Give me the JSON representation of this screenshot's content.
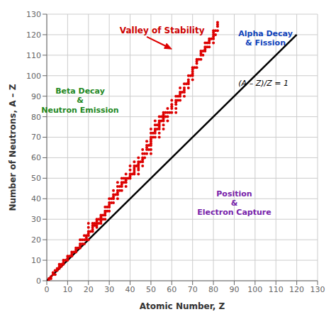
{
  "chart_data": {
    "type": "scatter",
    "xlabel": "Atomic Number, Z",
    "ylabel": "Number of Neutrons, A – Z",
    "xlim": [
      0,
      130
    ],
    "ylim": [
      0,
      130
    ],
    "xticks": [
      0,
      10,
      20,
      30,
      40,
      50,
      60,
      70,
      80,
      90,
      100,
      110,
      120,
      130
    ],
    "yticks": [
      0,
      10,
      20,
      30,
      40,
      50,
      60,
      70,
      80,
      90,
      100,
      110,
      120,
      130
    ],
    "grid": true,
    "series": [
      {
        "type": "line",
        "color": "#000000",
        "x": [
          0,
          120
        ],
        "values": [
          0,
          120
        ]
      },
      {
        "type": "scatter",
        "color": "#dd0000",
        "x": [
          1,
          1,
          2,
          2,
          3,
          3,
          4,
          4,
          5,
          5,
          6,
          6,
          6,
          7,
          7,
          8,
          8,
          8,
          9,
          10,
          10,
          10,
          11,
          12,
          12,
          12,
          13,
          14,
          14,
          14,
          15,
          16,
          16,
          16,
          16,
          17,
          17,
          18,
          18,
          18,
          19,
          19,
          19,
          20,
          20,
          20,
          20,
          20,
          20,
          21,
          22,
          22,
          22,
          22,
          22,
          23,
          23,
          24,
          24,
          24,
          24,
          24,
          25,
          25,
          26,
          26,
          26,
          26,
          26,
          27,
          27,
          28,
          28,
          28,
          28,
          28,
          29,
          29,
          30,
          30,
          30,
          30,
          30,
          31,
          31,
          32,
          32,
          32,
          32,
          32,
          33,
          34,
          34,
          34,
          34,
          34,
          34,
          35,
          35,
          36,
          36,
          36,
          36,
          36,
          37,
          37,
          38,
          38,
          38,
          38,
          38,
          39,
          40,
          40,
          40,
          40,
          40,
          41,
          42,
          42,
          42,
          42,
          42,
          42,
          43,
          44,
          44,
          44,
          44,
          44,
          44,
          44,
          45,
          46,
          46,
          46,
          46,
          46,
          46,
          47,
          47,
          48,
          48,
          48,
          48,
          48,
          49,
          49,
          50,
          50,
          50,
          50,
          50,
          50,
          50,
          50,
          50,
          51,
          51,
          52,
          52,
          52,
          52,
          52,
          52,
          53,
          53,
          54,
          54,
          54,
          54,
          54,
          54,
          54,
          54,
          55,
          55,
          56,
          56,
          56,
          56,
          56,
          56,
          56,
          57,
          57,
          58,
          58,
          58,
          58,
          59,
          60,
          60,
          60,
          60,
          60,
          62,
          62,
          62,
          62,
          62,
          62,
          63,
          63,
          64,
          64,
          64,
          64,
          64,
          65,
          66,
          66,
          66,
          66,
          66,
          67,
          68,
          68,
          68,
          68,
          68,
          69,
          70,
          70,
          70,
          70,
          70,
          70,
          71,
          72,
          72,
          72,
          72,
          73,
          74,
          74,
          74,
          74,
          75,
          75,
          76,
          76,
          76,
          76,
          77,
          77,
          78,
          78,
          78,
          78,
          79,
          80,
          80,
          80,
          80,
          80,
          80,
          81,
          81,
          82,
          82,
          82,
          82
        ],
        "values": [
          0,
          1,
          1,
          2,
          3,
          4,
          3,
          5,
          5,
          6,
          6,
          7,
          8,
          7,
          8,
          8,
          9,
          10,
          10,
          10,
          11,
          12,
          12,
          12,
          13,
          14,
          14,
          14,
          15,
          16,
          16,
          16,
          17,
          18,
          20,
          18,
          20,
          18,
          20,
          22,
          20,
          21,
          22,
          20,
          22,
          23,
          24,
          26,
          28,
          24,
          24,
          25,
          26,
          27,
          28,
          27,
          28,
          26,
          27,
          28,
          29,
          30,
          28,
          30,
          28,
          29,
          30,
          31,
          32,
          30,
          32,
          30,
          32,
          33,
          34,
          36,
          34,
          36,
          34,
          36,
          37,
          38,
          40,
          38,
          40,
          38,
          40,
          41,
          42,
          44,
          42,
          40,
          42,
          43,
          44,
          46,
          48,
          44,
          46,
          44,
          46,
          47,
          48,
          50,
          48,
          50,
          46,
          48,
          49,
          50,
          52,
          50,
          50,
          51,
          52,
          54,
          56,
          52,
          52,
          53,
          54,
          55,
          56,
          58,
          56,
          52,
          54,
          55,
          56,
          57,
          58,
          60,
          58,
          56,
          58,
          59,
          60,
          62,
          64,
          60,
          62,
          62,
          64,
          65,
          66,
          68,
          64,
          66,
          62,
          64,
          66,
          67,
          68,
          69,
          70,
          72,
          74,
          70,
          72,
          70,
          72,
          73,
          74,
          76,
          78,
          74,
          76,
          70,
          72,
          74,
          75,
          76,
          77,
          78,
          80,
          78,
          80,
          74,
          76,
          78,
          79,
          80,
          81,
          82,
          80,
          82,
          78,
          80,
          82,
          84,
          82,
          82,
          84,
          85,
          86,
          88,
          82,
          84,
          86,
          87,
          88,
          90,
          88,
          90,
          88,
          90,
          91,
          92,
          94,
          92,
          90,
          92,
          93,
          94,
          96,
          96,
          94,
          96,
          97,
          98,
          100,
          100,
          98,
          100,
          101,
          102,
          103,
          104,
          104,
          104,
          106,
          107,
          108,
          108,
          108,
          110,
          111,
          112,
          110,
          112,
          112,
          113,
          114,
          116,
          114,
          116,
          114,
          116,
          117,
          118,
          118,
          116,
          118,
          119,
          120,
          121,
          122,
          120,
          122,
          122,
          124,
          125,
          126
        ]
      }
    ],
    "arrows": [
      {
        "from": [
          48,
          119
        ],
        "to": [
          60,
          113
        ],
        "color": "#dd0000"
      }
    ],
    "annotations": [
      {
        "text": "Valley of Stability",
        "x": 35,
        "y": 122,
        "color": "#cc0000"
      },
      {
        "text": "Alpha Decay\n& Fission",
        "x": 105,
        "y": 122,
        "color": "#1144bb"
      },
      {
        "text": "Beta Decay\n&\nNeutron Emission",
        "x": 16,
        "y": 88,
        "color": "#228822"
      },
      {
        "text": "Position\n&\nElectron Capture",
        "x": 90,
        "y": 38,
        "color": "#7722aa"
      },
      {
        "text": "(A – Z)/Z = 1",
        "x": 92,
        "y": 95,
        "color": "#000000"
      }
    ]
  }
}
